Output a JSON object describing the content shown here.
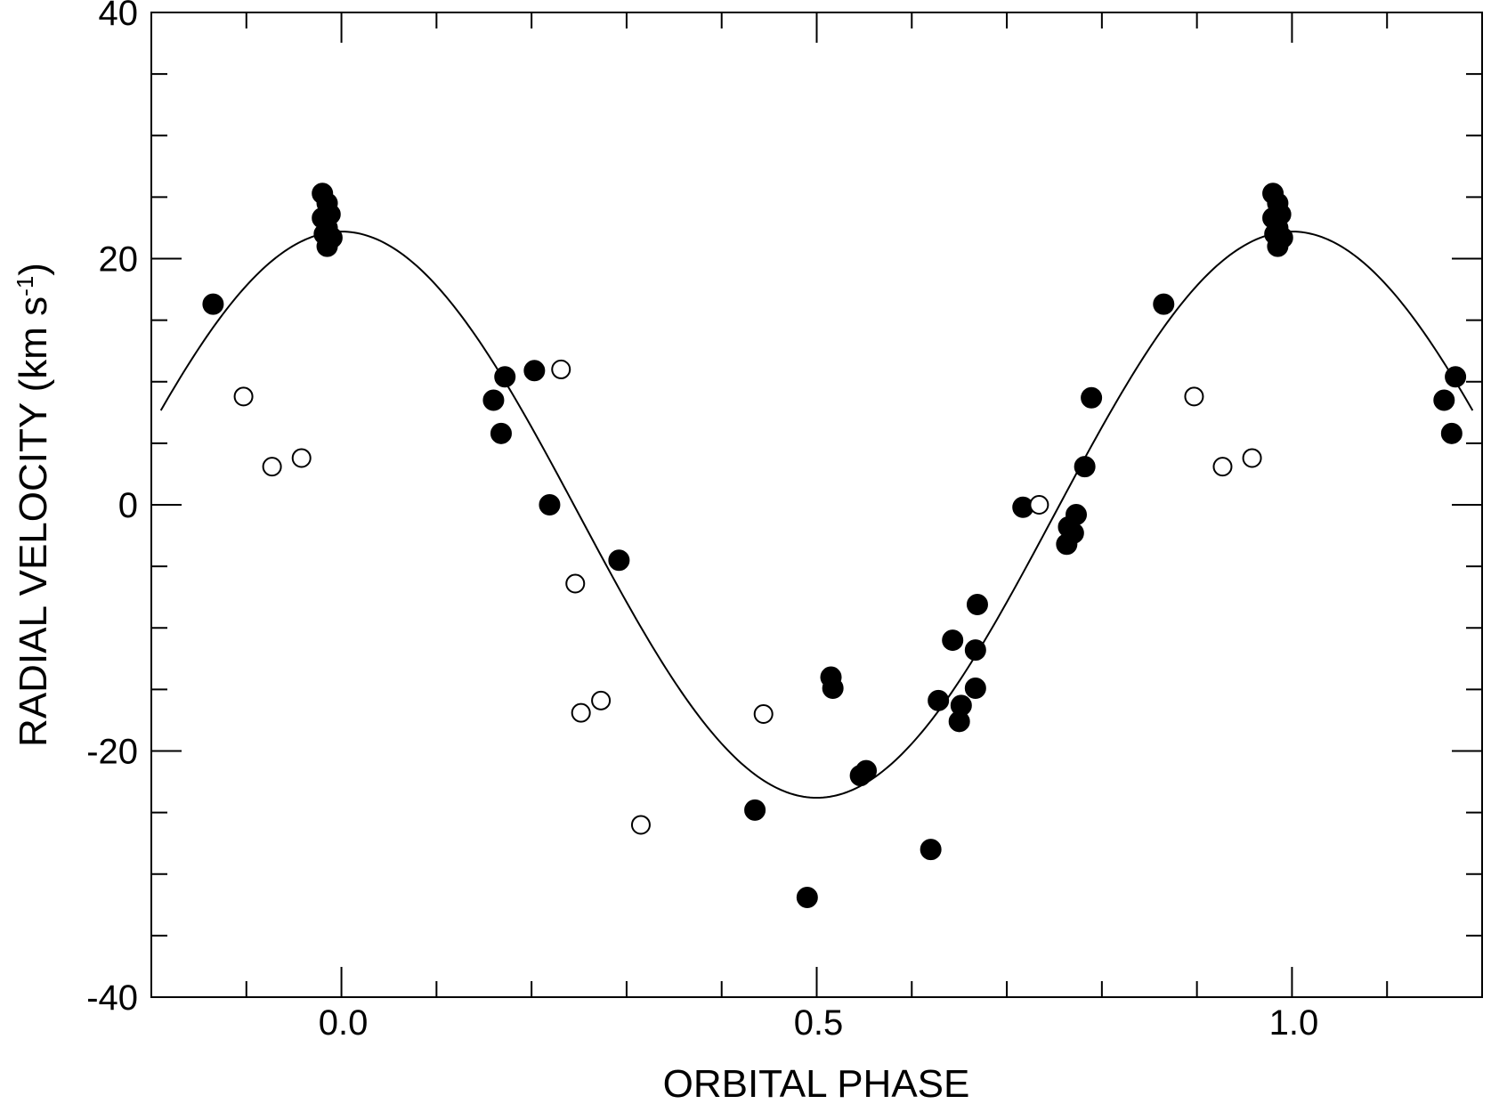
{
  "chart_data": {
    "type": "scatter",
    "title": "",
    "xlabel": "ORBITAL PHASE",
    "ylabel_main": "RADIAL VELOCITY (km s",
    "ylabel_sup": "-1",
    "ylabel_end": ")",
    "xlim": [
      -0.2,
      1.2
    ],
    "ylim": [
      -40,
      40
    ],
    "x_major_ticks": [
      0.0,
      0.5,
      1.0
    ],
    "x_major_tick_labels": [
      "0.0",
      "0.5",
      "1.0"
    ],
    "x_minor_step": 0.1,
    "y_major_ticks": [
      -40,
      -20,
      0,
      20,
      40
    ],
    "y_major_tick_labels": [
      "-40",
      "-20",
      "0",
      "20",
      "40"
    ],
    "y_minor_step": 5,
    "grid": false,
    "legend": "none",
    "colors": {
      "axis": "#000000",
      "curve": "#000000",
      "filled_point": "#000000",
      "open_point_fill": "#ffffff"
    },
    "fit_curve": {
      "type": "sine",
      "gamma": -0.8,
      "amplitude": 23.0,
      "phase_of_maximum": 0.0,
      "x_range": [
        -0.19,
        1.19
      ]
    },
    "series": [
      {
        "marker": "filled-circle",
        "points": [
          [
            -0.135,
            16.3
          ],
          [
            -0.02,
            25.3
          ],
          [
            -0.02,
            23.3
          ],
          [
            -0.015,
            24.5
          ],
          [
            -0.015,
            22.5
          ],
          [
            -0.012,
            23.6
          ],
          [
            -0.018,
            22.0
          ],
          [
            -0.015,
            21.0
          ],
          [
            -0.01,
            21.7
          ],
          [
            0.16,
            8.5
          ],
          [
            0.168,
            5.8
          ],
          [
            0.172,
            10.4
          ],
          [
            0.203,
            10.9
          ],
          [
            0.219,
            0.0
          ],
          [
            0.292,
            -4.5
          ],
          [
            0.435,
            -24.8
          ],
          [
            0.49,
            -31.9
          ],
          [
            0.515,
            -14.0
          ],
          [
            0.517,
            -14.9
          ],
          [
            0.546,
            -22.0
          ],
          [
            0.552,
            -21.6
          ],
          [
            0.62,
            -28.0
          ],
          [
            0.628,
            -15.9
          ],
          [
            0.643,
            -11.0
          ],
          [
            0.65,
            -17.6
          ],
          [
            0.652,
            -16.3
          ],
          [
            0.667,
            -11.8
          ],
          [
            0.667,
            -14.9
          ],
          [
            0.669,
            -8.1
          ],
          [
            0.717,
            -0.2
          ],
          [
            0.763,
            -3.2
          ],
          [
            0.765,
            -1.8
          ],
          [
            0.77,
            -2.3
          ],
          [
            0.773,
            -0.8
          ],
          [
            0.782,
            3.1
          ],
          [
            0.789,
            8.7
          ],
          [
            0.865,
            16.3
          ],
          [
            0.98,
            25.3
          ],
          [
            0.98,
            23.3
          ],
          [
            0.985,
            24.5
          ],
          [
            0.985,
            22.5
          ],
          [
            0.988,
            23.6
          ],
          [
            0.982,
            22.0
          ],
          [
            0.985,
            21.0
          ],
          [
            0.99,
            21.7
          ],
          [
            1.16,
            8.5
          ],
          [
            1.168,
            5.8
          ],
          [
            1.172,
            10.4
          ]
        ]
      },
      {
        "marker": "open-circle",
        "points": [
          [
            -0.103,
            8.8
          ],
          [
            -0.073,
            3.1
          ],
          [
            -0.042,
            3.8
          ],
          [
            0.231,
            11.0
          ],
          [
            0.246,
            -6.4
          ],
          [
            0.252,
            -16.9
          ],
          [
            0.273,
            -15.9
          ],
          [
            0.315,
            -26.0
          ],
          [
            0.444,
            -17.0
          ],
          [
            0.734,
            0.0
          ],
          [
            0.897,
            8.8
          ],
          [
            0.927,
            3.1
          ],
          [
            0.958,
            3.8
          ]
        ]
      }
    ]
  }
}
